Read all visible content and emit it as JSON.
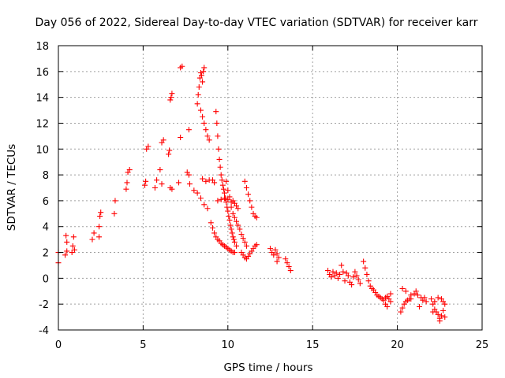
{
  "chart_data": {
    "type": "scatter",
    "title": "Day 056 of 2022, Sidereal Day-to-day VTEC variation (SDTVAR) for receiver karr",
    "xlabel": "GPS time / hours",
    "ylabel": "SDTVAR / TECUs",
    "xlim": [
      0,
      25
    ],
    "ylim": [
      -4,
      18
    ],
    "xticks": [
      "0",
      "5",
      "10",
      "15",
      "20",
      "25"
    ],
    "yticks": [
      "-4",
      "-2",
      "0",
      "2",
      "4",
      "6",
      "8",
      "10",
      "12",
      "14",
      "16",
      "18"
    ],
    "grid": true,
    "marker": "+",
    "marker_color": "#ff0000",
    "series": [
      {
        "name": "SDTVAR",
        "points": [
          [
            0.0,
            2.0
          ],
          [
            0.0,
            1.2
          ],
          [
            0.4,
            1.8
          ],
          [
            0.45,
            3.3
          ],
          [
            0.5,
            2.1
          ],
          [
            0.5,
            2.8
          ],
          [
            0.8,
            2.0
          ],
          [
            0.85,
            2.5
          ],
          [
            0.9,
            3.2
          ],
          [
            0.95,
            2.2
          ],
          [
            2.0,
            3.0
          ],
          [
            2.1,
            3.5
          ],
          [
            2.4,
            3.2
          ],
          [
            2.4,
            4.0
          ],
          [
            2.45,
            4.8
          ],
          [
            2.5,
            5.1
          ],
          [
            3.3,
            5.0
          ],
          [
            3.35,
            6.0
          ],
          [
            4.0,
            6.9
          ],
          [
            4.05,
            7.4
          ],
          [
            4.1,
            8.2
          ],
          [
            4.2,
            8.4
          ],
          [
            5.1,
            7.2
          ],
          [
            5.15,
            7.5
          ],
          [
            5.2,
            10.0
          ],
          [
            5.3,
            10.2
          ],
          [
            5.7,
            7.0
          ],
          [
            5.8,
            7.6
          ],
          [
            6.0,
            8.4
          ],
          [
            6.1,
            10.5
          ],
          [
            6.2,
            10.7
          ],
          [
            6.1,
            7.3
          ],
          [
            6.5,
            9.6
          ],
          [
            6.55,
            9.9
          ],
          [
            6.6,
            13.8
          ],
          [
            6.65,
            14.0
          ],
          [
            6.7,
            14.3
          ],
          [
            6.6,
            7.0
          ],
          [
            6.7,
            6.9
          ],
          [
            7.1,
            7.4
          ],
          [
            7.2,
            10.9
          ],
          [
            7.2,
            16.3
          ],
          [
            7.3,
            16.4
          ],
          [
            7.6,
            8.2
          ],
          [
            7.7,
            8.0
          ],
          [
            7.7,
            11.5
          ],
          [
            7.75,
            7.3
          ],
          [
            8.0,
            6.8
          ],
          [
            8.2,
            6.6
          ],
          [
            8.4,
            6.2
          ],
          [
            8.6,
            5.7
          ],
          [
            8.8,
            5.4
          ],
          [
            8.2,
            13.5
          ],
          [
            8.25,
            14.2
          ],
          [
            8.3,
            14.8
          ],
          [
            8.35,
            15.5
          ],
          [
            8.4,
            15.9
          ],
          [
            8.45,
            15.7
          ],
          [
            8.5,
            15.2
          ],
          [
            8.55,
            16.0
          ],
          [
            8.6,
            16.3
          ],
          [
            8.4,
            13.0
          ],
          [
            8.5,
            12.5
          ],
          [
            8.6,
            12.0
          ],
          [
            8.7,
            11.5
          ],
          [
            8.8,
            11.0
          ],
          [
            8.9,
            10.7
          ],
          [
            8.5,
            7.7
          ],
          [
            8.7,
            7.5
          ],
          [
            8.9,
            7.6
          ],
          [
            9.1,
            7.6
          ],
          [
            9.2,
            7.4
          ],
          [
            9.0,
            4.3
          ],
          [
            9.1,
            3.9
          ],
          [
            9.2,
            3.5
          ],
          [
            9.3,
            3.2
          ],
          [
            9.4,
            3.0
          ],
          [
            9.5,
            2.9
          ],
          [
            9.6,
            2.7
          ],
          [
            9.7,
            2.6
          ],
          [
            9.8,
            2.5
          ],
          [
            9.9,
            2.4
          ],
          [
            10.0,
            2.3
          ],
          [
            10.1,
            2.2
          ],
          [
            10.2,
            2.1
          ],
          [
            10.3,
            2.0
          ],
          [
            10.4,
            2.0
          ],
          [
            9.3,
            12.9
          ],
          [
            9.35,
            12.0
          ],
          [
            9.4,
            11.0
          ],
          [
            9.45,
            10.0
          ],
          [
            9.5,
            9.2
          ],
          [
            9.55,
            8.6
          ],
          [
            9.6,
            8.0
          ],
          [
            9.65,
            7.6
          ],
          [
            9.7,
            7.2
          ],
          [
            9.75,
            6.9
          ],
          [
            9.8,
            6.6
          ],
          [
            9.85,
            6.2
          ],
          [
            9.9,
            5.9
          ],
          [
            9.95,
            5.5
          ],
          [
            10.0,
            5.2
          ],
          [
            10.05,
            4.8
          ],
          [
            10.1,
            4.5
          ],
          [
            10.15,
            4.1
          ],
          [
            10.2,
            3.8
          ],
          [
            10.25,
            3.5
          ],
          [
            10.3,
            3.2
          ],
          [
            10.35,
            3.0
          ],
          [
            10.4,
            2.8
          ],
          [
            10.5,
            2.5
          ],
          [
            9.4,
            6.0
          ],
          [
            9.6,
            6.1
          ],
          [
            9.8,
            6.2
          ],
          [
            10.0,
            6.1
          ],
          [
            10.2,
            5.9
          ],
          [
            9.9,
            7.5
          ],
          [
            10.0,
            6.8
          ],
          [
            10.1,
            6.3
          ],
          [
            10.2,
            5.5
          ],
          [
            10.3,
            5.0
          ],
          [
            10.4,
            4.7
          ],
          [
            10.5,
            4.4
          ],
          [
            10.6,
            4.1
          ],
          [
            10.7,
            3.8
          ],
          [
            10.8,
            3.4
          ],
          [
            10.9,
            3.1
          ],
          [
            11.0,
            2.8
          ],
          [
            11.1,
            2.5
          ],
          [
            10.3,
            6.0
          ],
          [
            10.4,
            5.8
          ],
          [
            10.5,
            5.6
          ],
          [
            10.6,
            5.4
          ],
          [
            10.8,
            2.0
          ],
          [
            10.9,
            1.8
          ],
          [
            11.0,
            1.6
          ],
          [
            11.1,
            1.5
          ],
          [
            11.2,
            1.7
          ],
          [
            11.3,
            1.9
          ],
          [
            11.4,
            2.1
          ],
          [
            11.5,
            2.3
          ],
          [
            11.6,
            2.5
          ],
          [
            11.7,
            2.6
          ],
          [
            11.0,
            7.5
          ],
          [
            11.1,
            7.0
          ],
          [
            11.2,
            6.5
          ],
          [
            11.3,
            6.0
          ],
          [
            11.4,
            5.5
          ],
          [
            11.5,
            5.0
          ],
          [
            11.6,
            4.8
          ],
          [
            11.7,
            4.7
          ],
          [
            12.5,
            2.3
          ],
          [
            12.6,
            2.0
          ],
          [
            12.7,
            1.8
          ],
          [
            12.8,
            2.2
          ],
          [
            12.9,
            1.9
          ],
          [
            12.9,
            1.3
          ],
          [
            13.0,
            1.6
          ],
          [
            13.4,
            1.5
          ],
          [
            13.5,
            1.2
          ],
          [
            13.6,
            0.9
          ],
          [
            13.7,
            0.6
          ],
          [
            15.9,
            0.6
          ],
          [
            16.0,
            0.3
          ],
          [
            16.1,
            0.1
          ],
          [
            16.2,
            0.5
          ],
          [
            16.3,
            0.2
          ],
          [
            16.4,
            0.4
          ],
          [
            16.5,
            0.0
          ],
          [
            16.6,
            0.3
          ],
          [
            16.7,
            1.0
          ],
          [
            16.8,
            0.5
          ],
          [
            16.9,
            -0.2
          ],
          [
            17.0,
            0.4
          ],
          [
            17.1,
            0.2
          ],
          [
            17.2,
            -0.3
          ],
          [
            17.3,
            -0.5
          ],
          [
            17.4,
            0.1
          ],
          [
            17.5,
            0.5
          ],
          [
            17.6,
            0.2
          ],
          [
            17.7,
            -0.1
          ],
          [
            17.8,
            -0.4
          ],
          [
            18.0,
            1.3
          ],
          [
            18.1,
            0.8
          ],
          [
            18.2,
            0.3
          ],
          [
            18.3,
            -0.2
          ],
          [
            18.4,
            -0.6
          ],
          [
            18.5,
            -0.8
          ],
          [
            18.6,
            -0.9
          ],
          [
            18.7,
            -1.1
          ],
          [
            18.8,
            -1.3
          ],
          [
            18.9,
            -1.4
          ],
          [
            19.0,
            -1.5
          ],
          [
            19.1,
            -1.6
          ],
          [
            19.2,
            -1.7
          ],
          [
            19.3,
            -1.5
          ],
          [
            19.4,
            -1.4
          ],
          [
            19.5,
            -1.6
          ],
          [
            19.6,
            -1.2
          ],
          [
            19.3,
            -2.0
          ],
          [
            19.4,
            -2.2
          ],
          [
            19.6,
            -1.8
          ],
          [
            20.2,
            -2.6
          ],
          [
            20.3,
            -2.3
          ],
          [
            20.4,
            -2.0
          ],
          [
            20.5,
            -1.8
          ],
          [
            20.6,
            -1.7
          ],
          [
            20.7,
            -1.6
          ],
          [
            20.8,
            -1.6
          ],
          [
            20.3,
            -0.8
          ],
          [
            20.5,
            -1.0
          ],
          [
            20.8,
            -1.3
          ],
          [
            21.0,
            -1.2
          ],
          [
            21.1,
            -1.0
          ],
          [
            21.2,
            -1.3
          ],
          [
            21.4,
            -1.5
          ],
          [
            21.5,
            -1.7
          ],
          [
            21.3,
            -2.2
          ],
          [
            21.6,
            -1.5
          ],
          [
            21.7,
            -1.8
          ],
          [
            22.0,
            -1.6
          ],
          [
            22.1,
            -2.0
          ],
          [
            22.2,
            -2.4
          ],
          [
            22.3,
            -2.6
          ],
          [
            22.4,
            -2.8
          ],
          [
            22.5,
            -3.1
          ],
          [
            22.6,
            -2.9
          ],
          [
            22.7,
            -2.5
          ],
          [
            22.8,
            -2.0
          ],
          [
            22.6,
            -1.6
          ],
          [
            22.4,
            -1.5
          ],
          [
            22.2,
            -1.8
          ],
          [
            22.1,
            -2.6
          ],
          [
            22.5,
            -3.3
          ],
          [
            22.7,
            -1.8
          ],
          [
            22.8,
            -3.0
          ]
        ]
      }
    ]
  }
}
